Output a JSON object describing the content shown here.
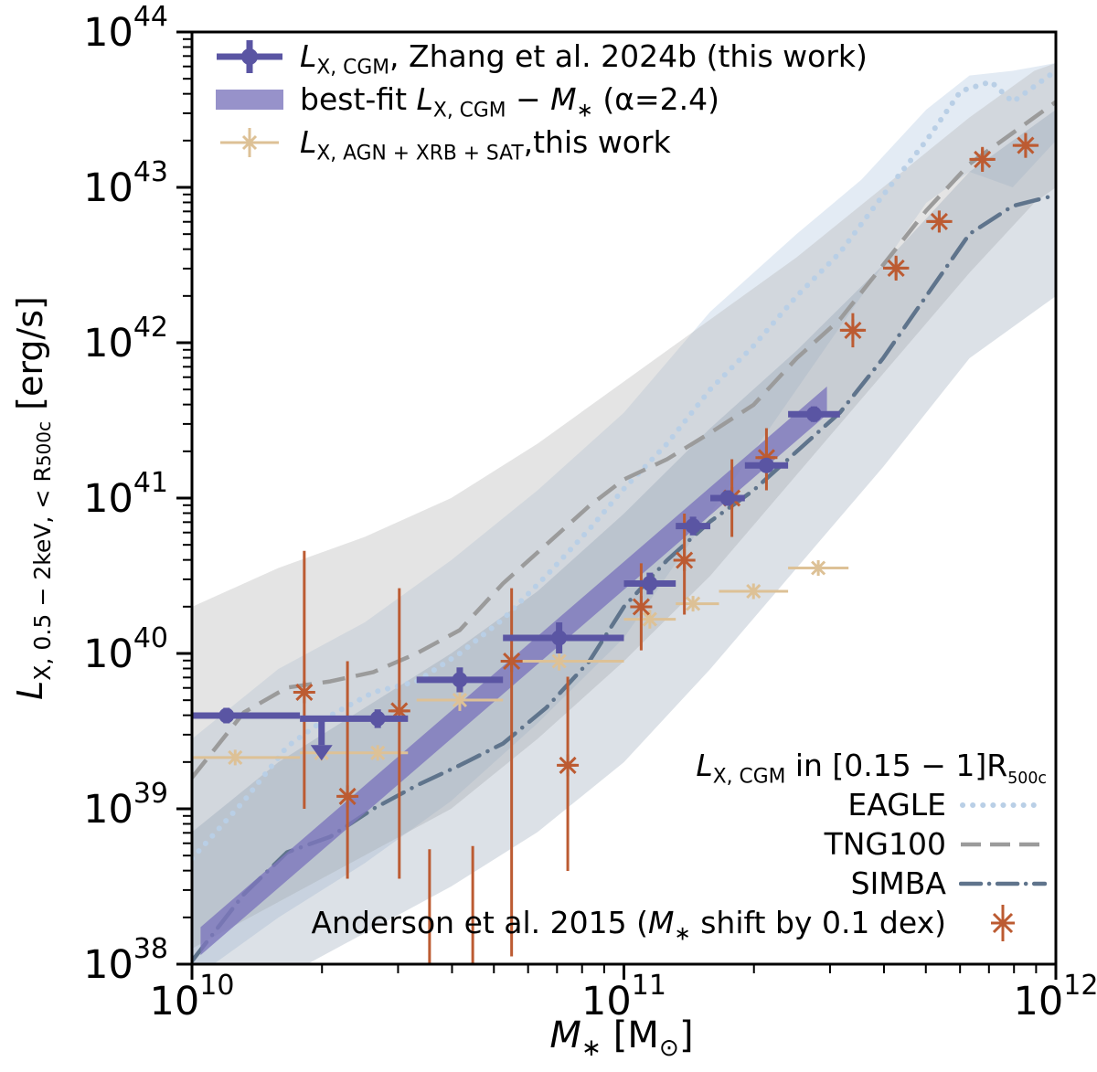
{
  "figure": {
    "background": "#ffffff"
  },
  "colors": {
    "cgm": "#5a55a3",
    "fit_band": "#7d77bd",
    "agn": "#ddc196",
    "anderson": "#bc5b32",
    "eagle": "#b9cfe6",
    "tng100": "#9b9b9b",
    "simba": "#5f748c",
    "axis": "#000000"
  },
  "axes": {
    "y_label": {
      "var": "L",
      "sub": "X, 0.5 − 2keV, < R",
      "sub_deep": "500c",
      "unit": " [erg/s]"
    },
    "x_label": {
      "var": "M",
      "sub": "∗",
      "unit_pre": " [M",
      "unit_sub": "⊙",
      "unit_post": "]"
    }
  },
  "legend_main": {
    "cgm": {
      "var": "L",
      "sub": "X, CGM",
      "post": ", Zhang et al. 2024b (this work)"
    },
    "fit": {
      "pre": "best-fit ",
      "var1": "L",
      "sub1": "X, CGM",
      "mid": " − ",
      "var2": "M",
      "sub2": "∗",
      "post": " (α=2.4)"
    },
    "agn": {
      "var": "L",
      "sub": "X, AGN + XRB + SAT",
      "post": ",this work"
    }
  },
  "legend_sims": {
    "title": {
      "var": "L",
      "sub": "X, CGM",
      "mid": " in [0.15 − 1]R",
      "sub_deep": "500c"
    },
    "eagle_label": "EAGLE",
    "tng_label": "TNG100",
    "simba_label": "SIMBA",
    "anderson": {
      "pre": "Anderson et al. 2015 (",
      "var": "M",
      "sub": "∗",
      "post": " shift by 0.1 dex)"
    }
  },
  "chart_data": {
    "type": "composite",
    "tick_base": "10",
    "x_axis": {
      "label": "M* [Msun]",
      "scale": "log",
      "range_exp": [
        10,
        12
      ],
      "tick_exponents": [
        10,
        11,
        12
      ]
    },
    "y_axis": {
      "label": "L_X(0.5-2keV, <R500c) [erg/s]",
      "scale": "log",
      "range_exp": [
        38,
        44
      ],
      "tick_exponents": [
        38,
        39,
        40,
        41,
        42,
        43,
        44
      ]
    },
    "series": [
      {
        "id": "eagle",
        "name": "EAGLE",
        "type": "line",
        "line_style": "dotted",
        "line_width": 6,
        "color": "#b9cfe6",
        "band_color": "#aec6e0",
        "band_opacity": 0.35,
        "points": [
          [
            10.0,
            38.68
          ],
          [
            10.12,
            39.05
          ],
          [
            10.22,
            39.4
          ],
          [
            10.32,
            39.6
          ],
          [
            10.42,
            39.75
          ],
          [
            10.52,
            39.82
          ],
          [
            10.62,
            40.0
          ],
          [
            10.72,
            40.22
          ],
          [
            10.82,
            40.5
          ],
          [
            10.92,
            40.8
          ],
          [
            11.0,
            41.06
          ],
          [
            11.1,
            41.35
          ],
          [
            11.2,
            41.7
          ],
          [
            11.3,
            41.98
          ],
          [
            11.4,
            42.3
          ],
          [
            11.5,
            42.58
          ],
          [
            11.6,
            42.95
          ],
          [
            11.7,
            43.3
          ],
          [
            11.78,
            43.62
          ],
          [
            11.85,
            43.68
          ],
          [
            11.9,
            43.55
          ],
          [
            12.0,
            43.75
          ]
        ],
        "band": {
          "upper": [
            [
              10.0,
              39.45
            ],
            [
              10.2,
              39.9
            ],
            [
              10.4,
              40.2
            ],
            [
              10.6,
              40.6
            ],
            [
              10.8,
              41.05
            ],
            [
              11.0,
              41.55
            ],
            [
              11.2,
              42.2
            ],
            [
              11.4,
              42.7
            ],
            [
              11.55,
              43.05
            ],
            [
              11.7,
              43.5
            ],
            [
              11.8,
              43.72
            ],
            [
              11.9,
              43.75
            ],
            [
              12.0,
              43.8
            ]
          ],
          "lower": [
            [
              10.0,
              37.9
            ],
            [
              10.2,
              38.3
            ],
            [
              10.4,
              38.65
            ],
            [
              10.6,
              39.05
            ],
            [
              10.8,
              39.55
            ],
            [
              11.0,
              40.1
            ],
            [
              11.2,
              40.9
            ],
            [
              11.4,
              41.7
            ],
            [
              11.55,
              42.3
            ],
            [
              11.7,
              42.9
            ],
            [
              11.8,
              43.1
            ],
            [
              11.9,
              43.0
            ],
            [
              12.0,
              43.3
            ]
          ]
        }
      },
      {
        "id": "tng100",
        "name": "TNG100",
        "type": "line",
        "line_style": "dashed",
        "line_width": 4.5,
        "color": "#9b9b9b",
        "band_color": "#b9b9b9",
        "band_opacity": 0.38,
        "points": [
          [
            10.0,
            39.2
          ],
          [
            10.12,
            39.62
          ],
          [
            10.22,
            39.78
          ],
          [
            10.32,
            39.82
          ],
          [
            10.42,
            39.88
          ],
          [
            10.52,
            40.0
          ],
          [
            10.62,
            40.15
          ],
          [
            10.72,
            40.45
          ],
          [
            10.82,
            40.7
          ],
          [
            10.92,
            40.95
          ],
          [
            11.0,
            41.12
          ],
          [
            11.1,
            41.25
          ],
          [
            11.2,
            41.42
          ],
          [
            11.3,
            41.6
          ],
          [
            11.4,
            41.9
          ],
          [
            11.5,
            42.15
          ],
          [
            11.6,
            42.5
          ],
          [
            11.7,
            42.85
          ],
          [
            11.8,
            43.15
          ],
          [
            11.9,
            43.35
          ],
          [
            12.0,
            43.55
          ]
        ],
        "band": {
          "upper": [
            [
              10.0,
              40.3
            ],
            [
              10.2,
              40.55
            ],
            [
              10.4,
              40.75
            ],
            [
              10.6,
              41.0
            ],
            [
              10.8,
              41.35
            ],
            [
              11.0,
              41.75
            ],
            [
              11.2,
              42.15
            ],
            [
              11.4,
              42.55
            ],
            [
              11.6,
              43.0
            ],
            [
              11.8,
              43.45
            ],
            [
              11.95,
              43.75
            ],
            [
              12.0,
              43.8
            ]
          ],
          "lower": [
            [
              10.0,
              38.1
            ],
            [
              10.2,
              38.4
            ],
            [
              10.4,
              38.7
            ],
            [
              10.6,
              39.0
            ],
            [
              10.8,
              39.45
            ],
            [
              11.0,
              39.95
            ],
            [
              11.2,
              40.5
            ],
            [
              11.4,
              41.15
            ],
            [
              11.6,
              41.8
            ],
            [
              11.8,
              42.45
            ],
            [
              11.95,
              42.9
            ],
            [
              12.0,
              43.0
            ]
          ]
        }
      },
      {
        "id": "simba",
        "name": "SIMBA",
        "type": "line",
        "line_style": "dashdot",
        "line_width": 4.5,
        "color": "#5f748c",
        "band_color": "#8195a9",
        "band_opacity": 0.28,
        "points": [
          [
            10.0,
            38.02
          ],
          [
            10.12,
            38.45
          ],
          [
            10.22,
            38.72
          ],
          [
            10.32,
            38.82
          ],
          [
            10.42,
            39.0
          ],
          [
            10.52,
            39.15
          ],
          [
            10.62,
            39.28
          ],
          [
            10.72,
            39.42
          ],
          [
            10.82,
            39.65
          ],
          [
            10.92,
            39.95
          ],
          [
            11.0,
            40.3
          ],
          [
            11.1,
            40.6
          ],
          [
            11.2,
            40.85
          ],
          [
            11.3,
            41.05
          ],
          [
            11.4,
            41.3
          ],
          [
            11.5,
            41.55
          ],
          [
            11.6,
            41.9
          ],
          [
            11.7,
            42.3
          ],
          [
            11.8,
            42.7
          ],
          [
            11.9,
            42.88
          ],
          [
            12.0,
            42.95
          ]
        ],
        "band": {
          "upper": [
            [
              10.0,
              38.85
            ],
            [
              10.2,
              39.3
            ],
            [
              10.4,
              39.65
            ],
            [
              10.6,
              40.0
            ],
            [
              10.8,
              40.4
            ],
            [
              11.0,
              40.9
            ],
            [
              11.2,
              41.45
            ],
            [
              11.4,
              41.95
            ],
            [
              11.6,
              42.5
            ],
            [
              11.8,
              43.1
            ],
            [
              12.0,
              43.5
            ]
          ],
          "lower": [
            [
              10.0,
              37.6
            ],
            [
              10.2,
              37.9
            ],
            [
              10.4,
              38.2
            ],
            [
              10.6,
              38.5
            ],
            [
              10.8,
              38.85
            ],
            [
              11.0,
              39.3
            ],
            [
              11.2,
              39.9
            ],
            [
              11.4,
              40.55
            ],
            [
              11.6,
              41.2
            ],
            [
              11.8,
              41.9
            ],
            [
              12.0,
              42.3
            ]
          ]
        }
      },
      {
        "id": "fit_band",
        "name": "best-fit LX,CGM - M* (alpha=2.4)",
        "type": "band",
        "color": "#7d77bd",
        "opacity": 0.8,
        "slope": 2.4,
        "logL_at_11": 40.5,
        "half_width": 0.09,
        "logM_range": [
          10.02,
          11.47
        ]
      },
      {
        "id": "agn_xrb_sat",
        "name": "LX,AGN+XRB+SAT, this work",
        "type": "scatter",
        "marker": "x",
        "marker_size": 7,
        "err_width": 3,
        "color": "#ddc196",
        "points": [
          {
            "logM": 10.1,
            "logL": 39.33,
            "xlo": 10.0,
            "xhi": 10.25,
            "yerr": 0.05
          },
          {
            "logM": 10.3,
            "logL": 39.36,
            "xlo": 10.25,
            "xhi": 10.36,
            "yerr": 0.05
          },
          {
            "logM": 10.43,
            "logL": 39.36,
            "xlo": 10.36,
            "xhi": 10.5,
            "yerr": 0.05
          },
          {
            "logM": 10.62,
            "logL": 39.7,
            "xlo": 10.52,
            "xhi": 10.72,
            "yerr": 0.07
          },
          {
            "logM": 10.85,
            "logL": 39.95,
            "xlo": 10.72,
            "xhi": 11.0,
            "yerr": 0.06
          },
          {
            "logM": 11.06,
            "logL": 40.22,
            "xlo": 11.0,
            "xhi": 11.12,
            "yerr": 0.06
          },
          {
            "logM": 11.16,
            "logL": 40.32,
            "xlo": 11.12,
            "xhi": 11.22,
            "yerr": 0.05
          },
          {
            "logM": 11.3,
            "logL": 40.4,
            "xlo": 11.22,
            "xhi": 11.38,
            "yerr": 0.05
          },
          {
            "logM": 11.45,
            "logL": 40.55,
            "xlo": 11.38,
            "xhi": 11.52,
            "yerr": 0.05
          }
        ]
      },
      {
        "id": "anderson",
        "name": "Anderson et al. 2015 (M* shift by 0.1 dex)",
        "type": "scatter",
        "marker": "asterisk",
        "marker_size": 12,
        "err_width": 3,
        "color": "#bc5b32",
        "points": [
          {
            "logM": 10.26,
            "logL": 39.75,
            "ylo": 39.0,
            "yhi": 40.66,
            "xerr": 0.02
          },
          {
            "logM": 10.36,
            "logL": 39.08,
            "ylo": 38.55,
            "yhi": 39.95,
            "xerr": 0.02
          },
          {
            "logM": 10.48,
            "logL": 39.63,
            "ylo": 38.55,
            "yhi": 40.42,
            "xerr": 0.02
          },
          {
            "logM": 10.55,
            "logL": 37.88,
            "ylo": 37.88,
            "yhi": 38.74,
            "xerr": 0.02
          },
          {
            "logM": 10.65,
            "logL": 37.88,
            "ylo": 37.88,
            "yhi": 38.76,
            "xerr": 0.02
          },
          {
            "logM": 10.74,
            "logL": 39.95,
            "ylo": 38.05,
            "yhi": 40.42,
            "xerr": 0.02
          },
          {
            "logM": 10.87,
            "logL": 39.28,
            "ylo": 38.6,
            "yhi": 39.85,
            "xerr": 0.02
          },
          {
            "logM": 11.04,
            "logL": 40.3,
            "ylo": 40.02,
            "yhi": 40.58,
            "xerr": 0.02
          },
          {
            "logM": 11.14,
            "logL": 40.6,
            "ylo": 40.25,
            "yhi": 40.9,
            "xerr": 0.02
          },
          {
            "logM": 11.25,
            "logL": 41.0,
            "ylo": 40.75,
            "yhi": 41.25,
            "xerr": 0.02
          },
          {
            "logM": 11.33,
            "logL": 41.26,
            "ylo": 41.05,
            "yhi": 41.45,
            "xerr": 0.02
          },
          {
            "logM": 11.53,
            "logL": 42.08,
            "ylo": 41.97,
            "yhi": 42.19,
            "xerr": 0.03
          },
          {
            "logM": 11.63,
            "logL": 42.48,
            "ylo": 42.4,
            "yhi": 42.56,
            "xerr": 0.03
          },
          {
            "logM": 11.73,
            "logL": 42.78,
            "ylo": 42.71,
            "yhi": 42.85,
            "xerr": 0.03
          },
          {
            "logM": 11.83,
            "logL": 43.18,
            "ylo": 43.1,
            "yhi": 43.26,
            "xerr": 0.03
          },
          {
            "logM": 11.93,
            "logL": 43.27,
            "ylo": 43.19,
            "yhi": 43.35,
            "xerr": 0.03
          }
        ]
      },
      {
        "id": "zhang_cgm",
        "name": "LX,CGM, Zhang et al. 2024b (this work)",
        "type": "scatter",
        "marker": "circle",
        "marker_size": 8.5,
        "err_width": 7,
        "color": "#5a55a3",
        "points": [
          {
            "logM": 10.08,
            "logL": 39.6,
            "xlo": 10.0,
            "xhi": 10.25,
            "yerr": 0.05
          },
          {
            "logM": 10.3,
            "logL": 39.58,
            "xlo": 10.25,
            "xhi": 10.36,
            "upper_limit": true,
            "arrow_to": 39.41
          },
          {
            "logM": 10.43,
            "logL": 39.58,
            "xlo": 10.36,
            "xhi": 10.5,
            "yerr": 0.06
          },
          {
            "logM": 10.62,
            "logL": 39.83,
            "xlo": 10.52,
            "xhi": 10.72,
            "yerr": 0.08
          },
          {
            "logM": 10.85,
            "logL": 40.1,
            "xlo": 10.72,
            "xhi": 11.0,
            "yerr": 0.1
          },
          {
            "logM": 11.06,
            "logL": 40.45,
            "xlo": 11.0,
            "xhi": 11.12,
            "yerr": 0.07
          },
          {
            "logM": 11.16,
            "logL": 40.82,
            "xlo": 11.12,
            "xhi": 11.2,
            "yerr": 0.06
          },
          {
            "logM": 11.24,
            "logL": 41.0,
            "xlo": 11.2,
            "xhi": 11.28,
            "yerr": 0.05
          },
          {
            "logM": 11.33,
            "logL": 41.21,
            "xlo": 11.28,
            "xhi": 11.38,
            "yerr": 0.04
          },
          {
            "logM": 11.44,
            "logL": 41.54,
            "xlo": 11.38,
            "xhi": 11.5,
            "yerr": 0.05
          }
        ]
      }
    ]
  }
}
